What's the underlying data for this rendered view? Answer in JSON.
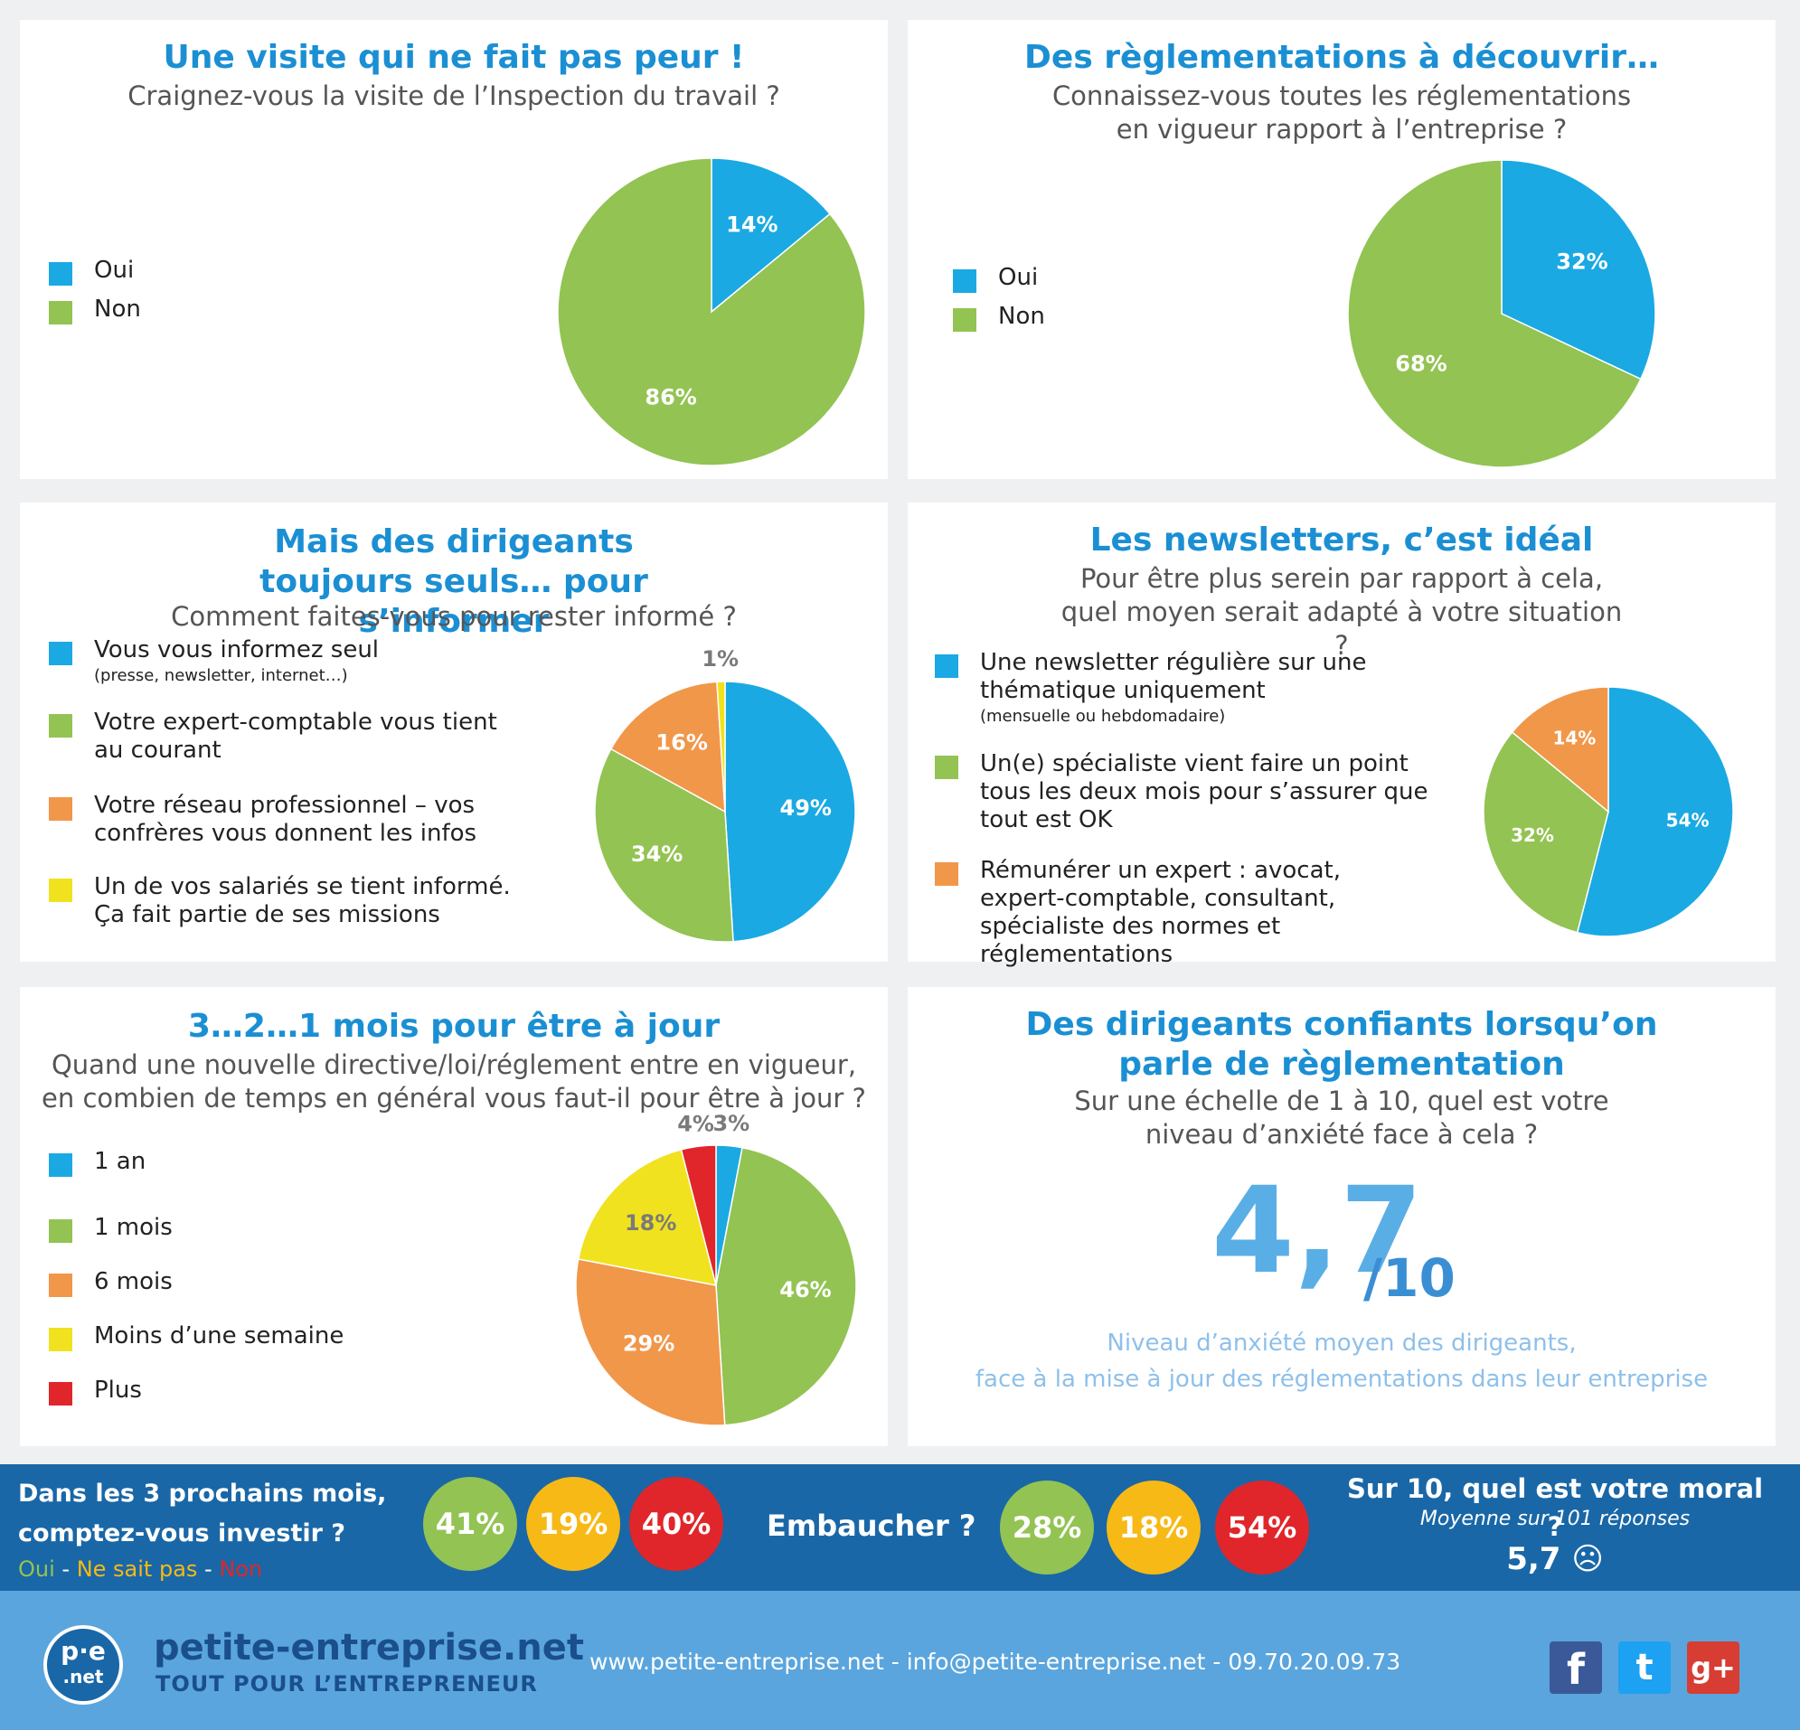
{
  "colors": {
    "blue": "#1aa9e3",
    "green": "#93c353",
    "orange": "#f1974a",
    "yellow": "#f0e21e",
    "red": "#e0262a",
    "title_blue": "#1b8fd3",
    "band_bg": "#1967a7",
    "footer_bg": "#5aa5dd"
  },
  "panels": [
    {
      "title": "Une visite qui ne fait pas peur !",
      "subtitle": "Craignez-vous la visite de l’Inspection du travail ?",
      "legend": [
        {
          "label": "Oui",
          "color": "#1aa9e3"
        },
        {
          "label": "Non",
          "color": "#93c353"
        }
      ]
    },
    {
      "title": "Des règlementations à découvrir…",
      "subtitle": "Connaissez-vous toutes les réglementations en vigueur rapport à l’entreprise ?",
      "legend": [
        {
          "label": "Oui",
          "color": "#1aa9e3"
        },
        {
          "label": "Non",
          "color": "#93c353"
        }
      ]
    },
    {
      "title": "Mais des dirigeants toujours seuls… pour s’informer",
      "subtitle": "Comment faites-vous pour rester informé ?",
      "legend": [
        {
          "label": "Vous vous informez seul",
          "note": "(presse, newsletter, internet…)",
          "color": "#1aa9e3"
        },
        {
          "label": "Votre expert-comptable vous tient au courant",
          "color": "#93c353"
        },
        {
          "label": "Votre réseau professionnel – vos confrères vous donnent les infos",
          "color": "#f1974a"
        },
        {
          "label": "Un de vos salariés se tient informé. Ça fait partie de ses missions",
          "color": "#f0e21e"
        }
      ]
    },
    {
      "title": "Les newsletters, c’est idéal",
      "subtitle": "Pour être plus serein par rapport à cela, quel moyen serait adapté à votre situation ?",
      "legend": [
        {
          "label": "Une newsletter régulière sur une thématique uniquement",
          "note": "(mensuelle ou hebdomadaire)",
          "color": "#1aa9e3"
        },
        {
          "label": "Un(e) spécialiste vient faire un point tous les deux mois pour s’assurer que tout est OK",
          "color": "#93c353"
        },
        {
          "label": "Rémunérer un expert : avocat, expert-comptable, consultant, spécialiste des normes et réglementations",
          "color": "#f1974a"
        }
      ]
    },
    {
      "title": "3…2…1 mois pour être à jour",
      "subtitle": "Quand une nouvelle directive/loi/réglement entre en vigueur, en combien de temps en général vous faut-il pour être à jour ?",
      "legend": [
        {
          "label": "1 an",
          "color": "#1aa9e3"
        },
        {
          "label": "1 mois",
          "color": "#93c353"
        },
        {
          "label": "6 mois",
          "color": "#f1974a"
        },
        {
          "label": "Moins d’une semaine",
          "color": "#f0e21e"
        },
        {
          "label": "Plus",
          "color": "#e0262a"
        }
      ]
    },
    {
      "title": "Des dirigeants confiants lorsqu’on parle de règlementation",
      "subtitle": "Sur une échelle de 1 à 10, quel est votre niveau d’anxiété face à cela ?",
      "score": "4,7",
      "score_denominator": "/10",
      "caption_line1": "Niveau d’anxiété moyen des dirigeants,",
      "caption_line2": "face à la mise à jour des réglementations dans leur entreprise"
    }
  ],
  "chart_data": [
    {
      "type": "pie",
      "title": "Une visite qui ne fait pas peur !",
      "labels": [
        "Oui",
        "Non"
      ],
      "values": [
        14,
        86
      ],
      "data_labels": [
        "14%",
        "86%"
      ],
      "colors": [
        "#1aa9e3",
        "#93c353"
      ],
      "legend_position": "left"
    },
    {
      "type": "pie",
      "title": "Des règlementations à découvrir…",
      "labels": [
        "Oui",
        "Non"
      ],
      "values": [
        32,
        68
      ],
      "data_labels": [
        "32%",
        "68%"
      ],
      "colors": [
        "#1aa9e3",
        "#93c353"
      ],
      "legend_position": "left"
    },
    {
      "type": "pie",
      "title": "Mais des dirigeants toujours seuls… pour s’informer",
      "labels": [
        "Vous vous informez seul",
        "Votre expert-comptable vous tient au courant",
        "Votre réseau professionnel – vos confrères vous donnent les infos",
        "Un de vos salariés se tient informé. Ça fait partie de ses missions"
      ],
      "values": [
        49,
        34,
        16,
        1
      ],
      "data_labels": [
        "49%",
        "34%",
        "16%",
        "1%"
      ],
      "colors": [
        "#1aa9e3",
        "#93c353",
        "#f1974a",
        "#f0e21e"
      ],
      "legend_position": "left"
    },
    {
      "type": "pie",
      "title": "Les newsletters, c’est idéal",
      "labels": [
        "Une newsletter régulière sur une thématique uniquement",
        "Un(e) spécialiste vient faire un point tous les deux mois pour s’assurer que tout est OK",
        "Rémunérer un expert : avocat, expert-comptable, consultant, spécialiste des normes et réglementations"
      ],
      "values": [
        54,
        32,
        14
      ],
      "data_labels": [
        "54%",
        "32%",
        "14%"
      ],
      "colors": [
        "#1aa9e3",
        "#93c353",
        "#f1974a"
      ],
      "legend_position": "left"
    },
    {
      "type": "pie",
      "title": "3…2…1 mois pour être à jour",
      "labels": [
        "1 an",
        "1 mois",
        "6 mois",
        "Moins d’une semaine",
        "Plus"
      ],
      "values": [
        3,
        46,
        29,
        18,
        4
      ],
      "data_labels": [
        "3%",
        "46%",
        "29%",
        "18%",
        "4%"
      ],
      "colors": [
        "#1aa9e3",
        "#93c353",
        "#f1974a",
        "#f0e21e",
        "#e0262a"
      ],
      "legend_position": "left"
    }
  ],
  "band": {
    "invest_question_line1": "Dans les 3 prochains mois,",
    "invest_question_line2": "comptez-vous investir ?",
    "key_oui": "Oui",
    "key_sep1": " - ",
    "key_nsp": "Ne sait pas",
    "key_sep2": " - ",
    "key_non": "Non",
    "invest_values": [
      "41%",
      "19%",
      "40%"
    ],
    "hire_question": "Embaucher ?",
    "hire_values": [
      "28%",
      "18%",
      "54%"
    ],
    "moral_question": "Sur 10, quel est votre moral ?",
    "moral_sub": "Moyenne sur 101 réponses",
    "moral_value": "5,7",
    "moral_face": "☹"
  },
  "footer": {
    "logo_top": "p·e",
    "logo_bottom": ".net",
    "brand": "petite-entreprise.net",
    "tagline": "TOUT POUR L’ENTREPRENEUR",
    "contact": "www.petite-entreprise.net - info@petite-entreprise.net - 09.70.20.09.73",
    "social_facebook": "f",
    "social_twitter": "t",
    "social_gplus": "g+"
  }
}
